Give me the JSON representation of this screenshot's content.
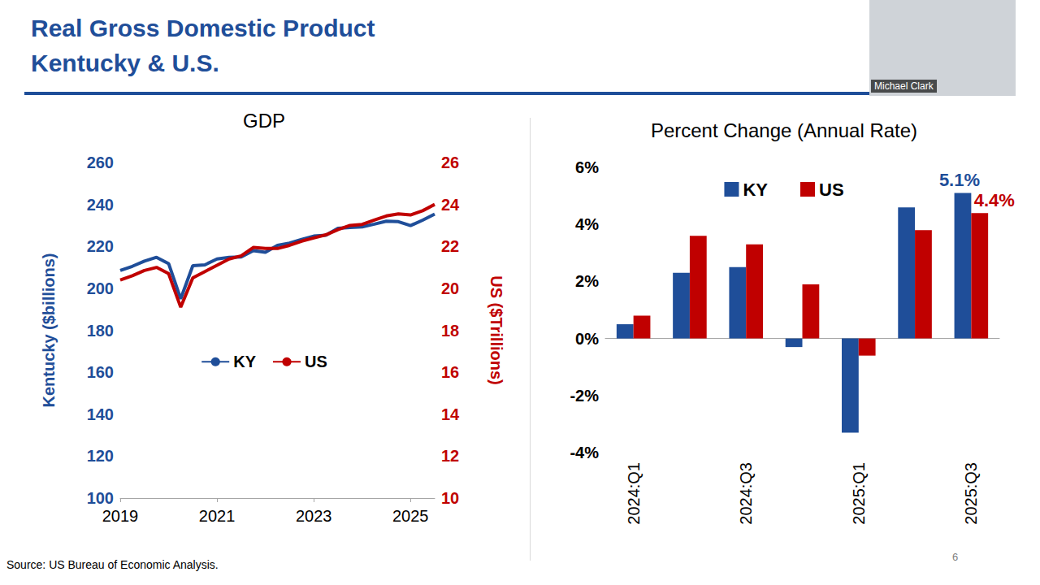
{
  "slide": {
    "title": "Real Gross Domestic Product",
    "subtitle": "Kentucky & U.S.",
    "source": "Source: US Bureau of Economic Analysis.",
    "page": 6,
    "presenter": "Michael Clark"
  },
  "chart_data": [
    {
      "type": "line",
      "title": "GDP",
      "categories": [
        "2019",
        null,
        null,
        null,
        null,
        null,
        null,
        null,
        "2021",
        null,
        null,
        null,
        null,
        null,
        null,
        null,
        "2023",
        null,
        null,
        null,
        null,
        null,
        null,
        null,
        "2025",
        null,
        null
      ],
      "series": [
        {
          "name": "KY",
          "color": "#1F4E99",
          "axis": "y",
          "values": [
            208.5,
            210.5,
            213.0,
            214.8,
            211.8,
            195.0,
            210.8,
            211.2,
            214.0,
            214.8,
            215.0,
            218.0,
            217.2,
            220.5,
            221.6,
            223.3,
            224.9,
            225.3,
            228.6,
            229.0,
            229.3,
            230.6,
            232.0,
            231.8,
            229.9,
            232.5,
            235.4
          ]
        },
        {
          "name": "US",
          "color": "#C00000",
          "axis": "y2",
          "values": [
            20.4,
            20.6,
            20.85,
            21.0,
            20.7,
            19.1,
            20.5,
            20.8,
            21.1,
            21.4,
            21.55,
            21.95,
            21.9,
            21.9,
            22.05,
            22.25,
            22.4,
            22.55,
            22.8,
            23.0,
            23.05,
            23.25,
            23.45,
            23.55,
            23.5,
            23.7,
            24.0
          ]
        }
      ],
      "ylabel": "Kentucky ($billions)",
      "y2label": "US ($Trillions)",
      "ylim": [
        100,
        260
      ],
      "yticks": [
        100,
        120,
        140,
        160,
        180,
        200,
        220,
        240,
        260
      ],
      "y2lim": [
        10,
        26
      ],
      "y2ticks": [
        10,
        12,
        14,
        16,
        18,
        20,
        22,
        24,
        26
      ],
      "grid": false,
      "legend": "center"
    },
    {
      "type": "bar",
      "title": "Percent Change (Annual Rate)",
      "categories": [
        "2024:Q1",
        null,
        "2024:Q3",
        null,
        "2025:Q1",
        null,
        "2025:Q3"
      ],
      "series": [
        {
          "name": "KY",
          "color": "#1F4E99",
          "values": [
            0.5,
            2.3,
            2.5,
            -0.3,
            -3.3,
            4.6,
            5.1
          ],
          "value_labels": [
            null,
            null,
            null,
            null,
            null,
            null,
            "5.1%"
          ]
        },
        {
          "name": "US",
          "color": "#C00000",
          "values": [
            0.8,
            3.6,
            3.3,
            1.9,
            -0.6,
            3.8,
            4.4
          ],
          "value_labels": [
            null,
            null,
            null,
            null,
            null,
            null,
            "4.4%"
          ]
        }
      ],
      "ylim": [
        -4,
        6
      ],
      "yticks": [
        {
          "value": -4,
          "label": "-4%"
        },
        {
          "value": -2,
          "label": "-2%"
        },
        {
          "value": 0,
          "label": "0%"
        },
        {
          "value": 2,
          "label": "2%"
        },
        {
          "value": 4,
          "label": "4%"
        },
        {
          "value": 6,
          "label": "6%"
        }
      ],
      "grid": false,
      "legend": "top",
      "data_labels": true
    }
  ]
}
